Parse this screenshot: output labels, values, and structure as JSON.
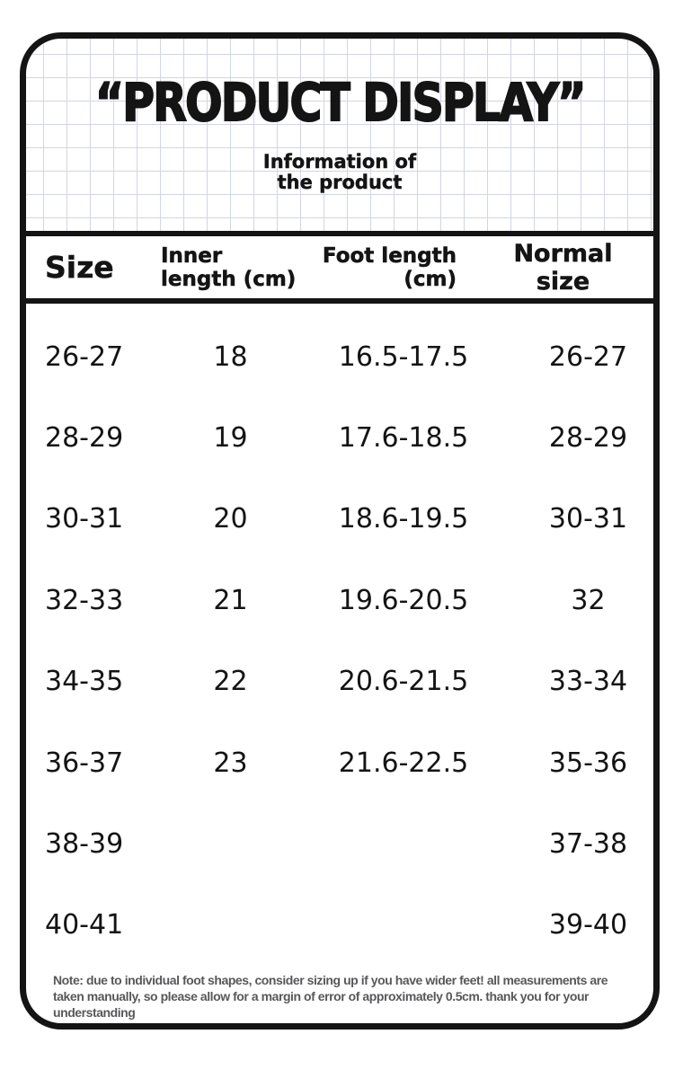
{
  "header": {
    "title": "“PRODUCT DISPLAY”",
    "subtitle_line1": "Information of",
    "subtitle_line2": "the product"
  },
  "table": {
    "columns": {
      "size": {
        "label": "Size"
      },
      "inner_length": {
        "label_line1": "Inner",
        "label_line2": "length (cm)"
      },
      "foot_length": {
        "label_line1": "Foot length",
        "label_line2": "(cm)"
      },
      "normal_size": {
        "label": "Normal size"
      }
    },
    "rows": [
      {
        "size": "26-27",
        "inner_length_cm": "18",
        "foot_length_cm": "16.5-17.5",
        "normal_size": "26-27"
      },
      {
        "size": "28-29",
        "inner_length_cm": "19",
        "foot_length_cm": "17.6-18.5",
        "normal_size": "28-29"
      },
      {
        "size": "30-31",
        "inner_length_cm": "20",
        "foot_length_cm": "18.6-19.5",
        "normal_size": "30-31"
      },
      {
        "size": "32-33",
        "inner_length_cm": "21",
        "foot_length_cm": "19.6-20.5",
        "normal_size": "32"
      },
      {
        "size": "34-35",
        "inner_length_cm": "22",
        "foot_length_cm": "20.6-21.5",
        "normal_size": "33-34"
      },
      {
        "size": "36-37",
        "inner_length_cm": "23",
        "foot_length_cm": "21.6-22.5",
        "normal_size": "35-36"
      },
      {
        "size": "38-39",
        "inner_length_cm": "",
        "foot_length_cm": "",
        "normal_size": "37-38"
      },
      {
        "size": "40-41",
        "inner_length_cm": "",
        "foot_length_cm": "",
        "normal_size": "39-40"
      }
    ]
  },
  "note": "Note: due to individual foot shapes, consider sizing up if you have wider feet! all measurements are taken manually, so please allow for a margin of error of approximately 0.5cm. thank you for your understanding",
  "colors": {
    "border_black": "#141414",
    "grid_line": "#d2d5e6",
    "note_gray": "#58585b"
  }
}
